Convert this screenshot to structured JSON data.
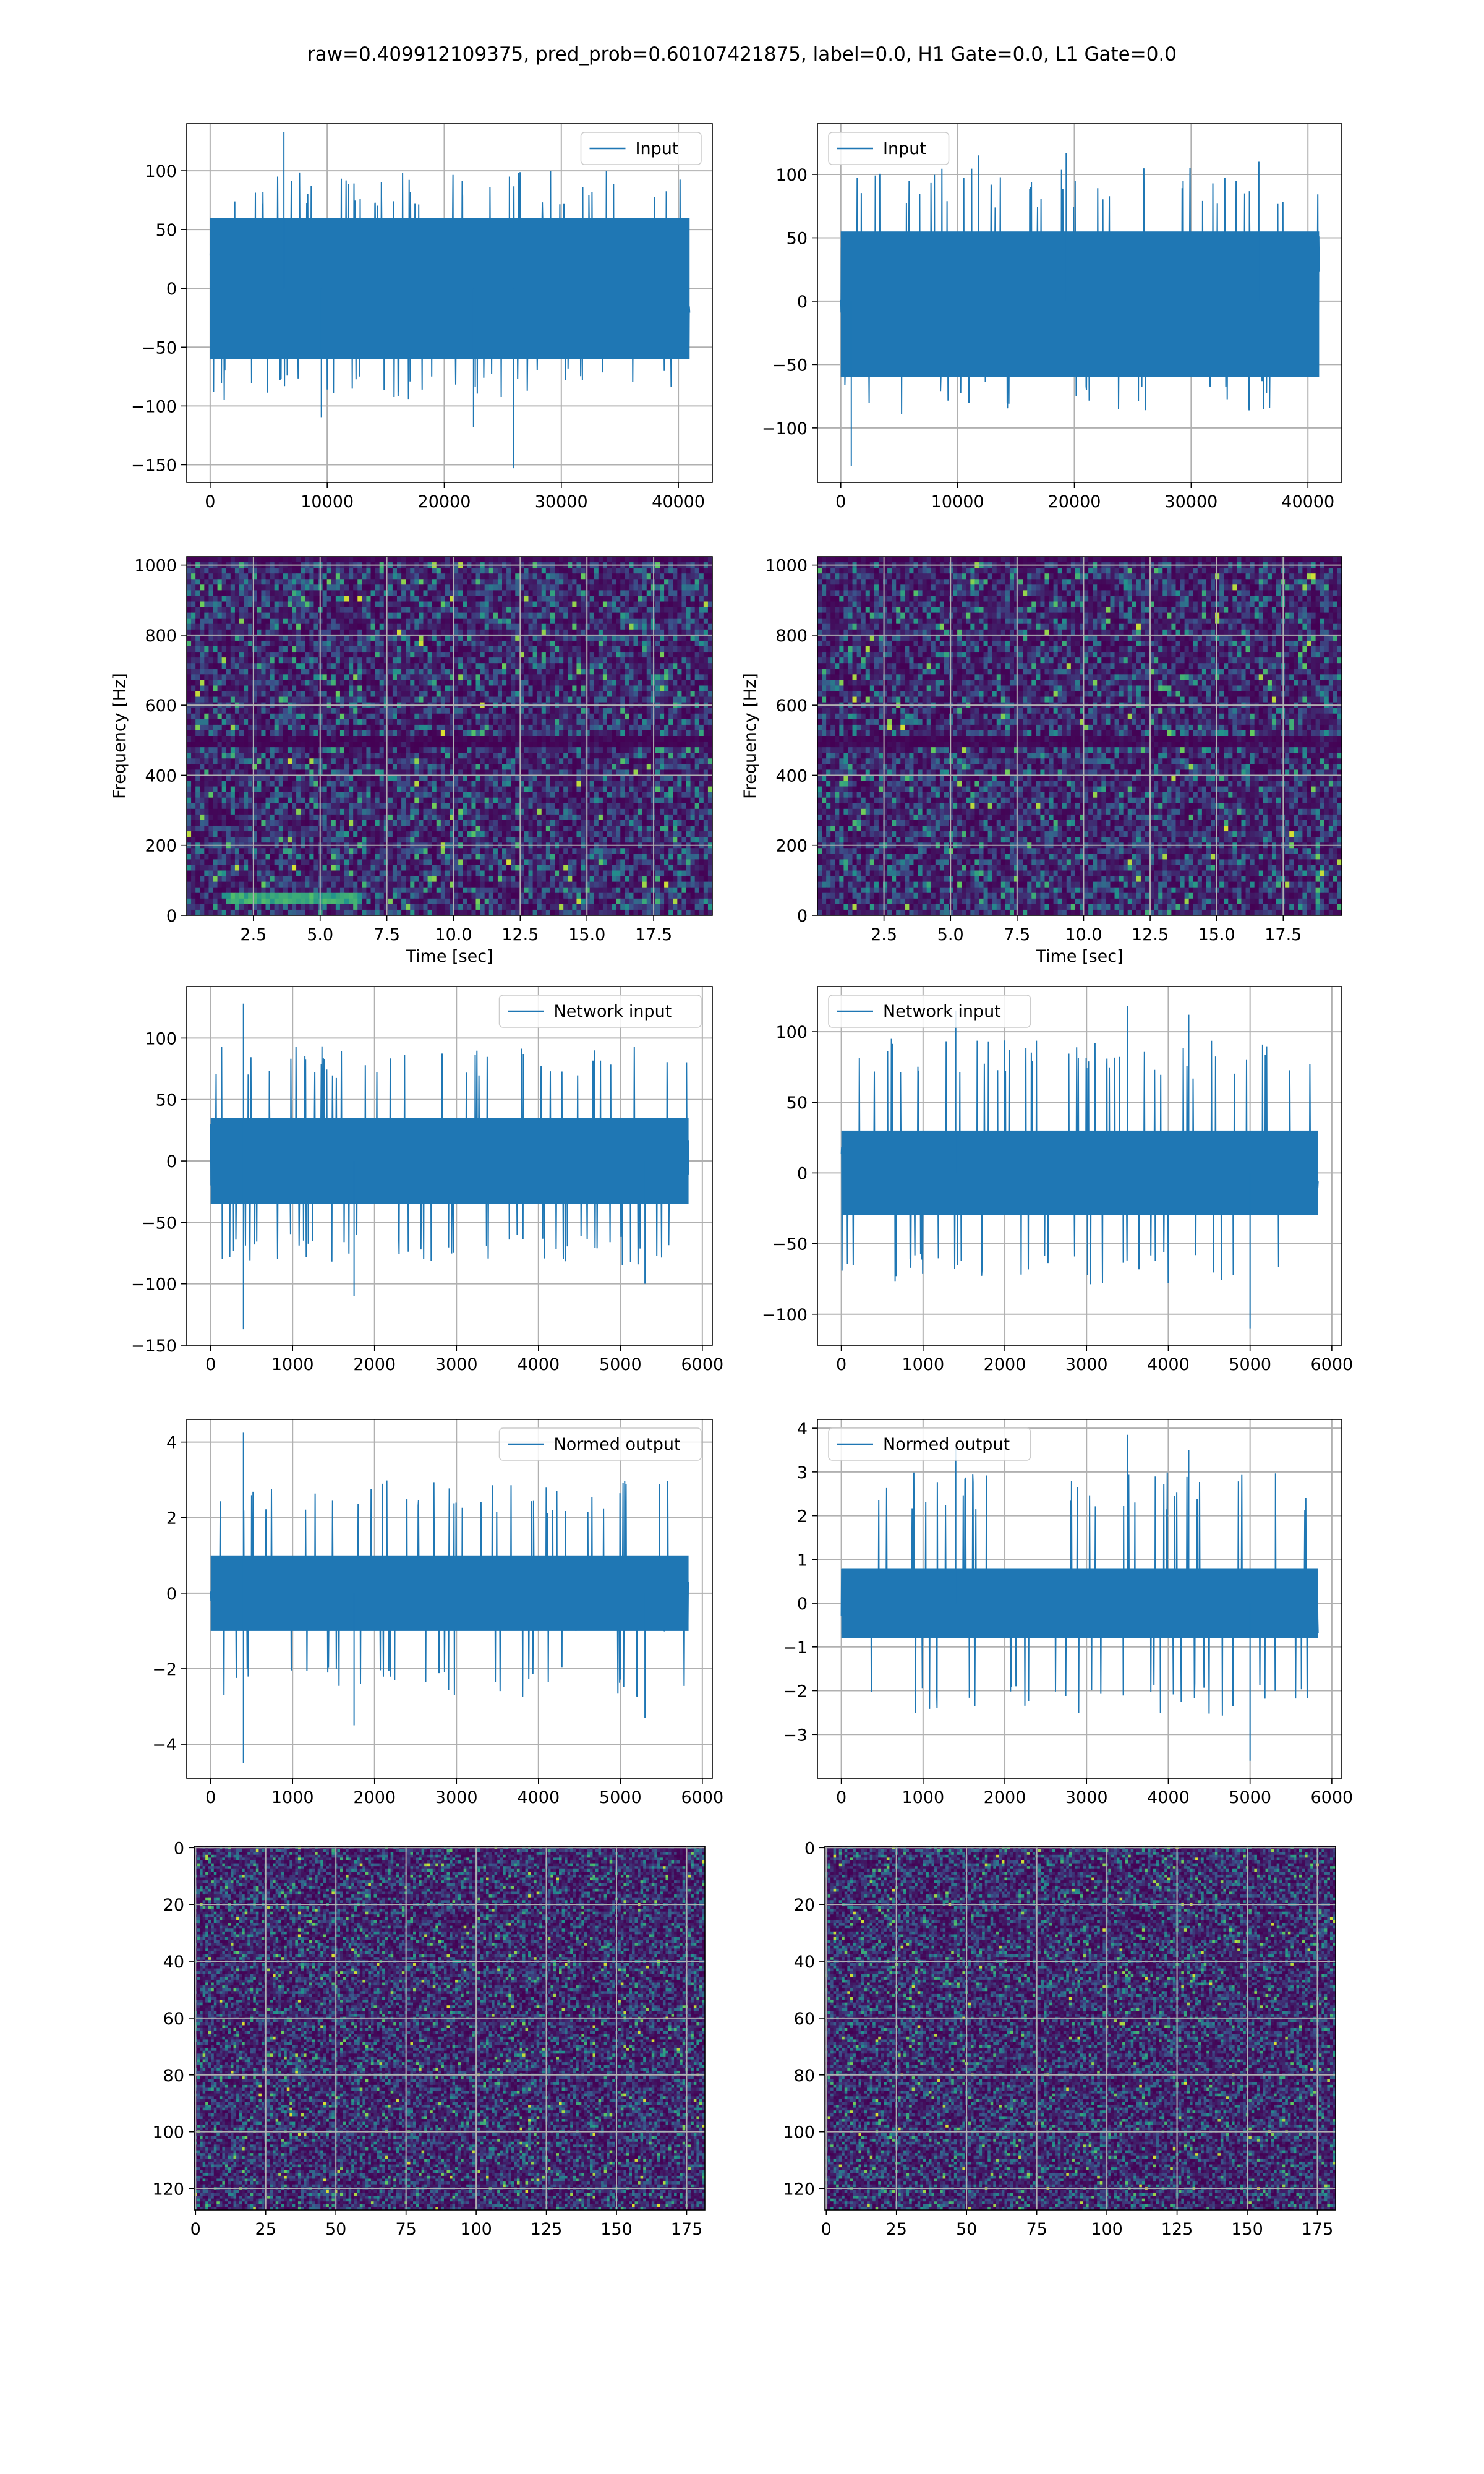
{
  "figure": {
    "suptitle": "raw=0.409912109375, pred_prob=0.60107421875, label=0.0, H1 Gate=0.0, L1 Gate=0.0"
  },
  "colors": {
    "series": "#1f77b4",
    "grid": "#b0b0b0",
    "viridis_low": "#440154",
    "viridis_high": "#fde725"
  },
  "chart_data": [
    {
      "id": "p1",
      "type": "line",
      "legend": "Input",
      "legend_loc": "upper right",
      "xlim": [
        -2000,
        42900
      ],
      "ylim": [
        -165,
        140
      ],
      "xticks": [
        0,
        10000,
        20000,
        30000,
        40000
      ],
      "yticks": [
        -150,
        -100,
        -50,
        0,
        50,
        100
      ],
      "x_range": [
        0,
        40960
      ],
      "band": [
        -60,
        60
      ],
      "envelope": [
        -95,
        100
      ],
      "spikes": [
        {
          "x": 6300,
          "y": 133
        },
        {
          "x": 25900,
          "y": -153
        },
        {
          "x": 22500,
          "y": -118
        },
        {
          "x": 9500,
          "y": -110
        }
      ],
      "grid": true
    },
    {
      "id": "p2",
      "type": "line",
      "legend": "Input",
      "legend_loc": "upper left",
      "xlim": [
        -2000,
        42900
      ],
      "ylim": [
        -143,
        140
      ],
      "xticks": [
        0,
        10000,
        20000,
        30000,
        40000
      ],
      "yticks": [
        -100,
        -50,
        0,
        50,
        100
      ],
      "x_range": [
        0,
        40960
      ],
      "band": [
        -60,
        55
      ],
      "envelope": [
        -90,
        105
      ],
      "spikes": [
        {
          "x": 900,
          "y": -130
        },
        {
          "x": 11800,
          "y": 115
        },
        {
          "x": 19300,
          "y": 117
        },
        {
          "x": 35800,
          "y": 110
        }
      ],
      "grid": true
    },
    {
      "id": "p3",
      "type": "heatmap",
      "kind": "spectrogram",
      "xlabel": "Time [sec]",
      "ylabel": "Frequency [Hz]",
      "xlim": [
        0,
        19.7
      ],
      "ylim": [
        0,
        1024
      ],
      "xticks": [
        2.5,
        5.0,
        7.5,
        10.0,
        12.5,
        15.0,
        17.5
      ],
      "xtick_labels": [
        "2.5",
        "5.0",
        "7.5",
        "10.0",
        "12.5",
        "15.0",
        "17.5"
      ],
      "yticks": [
        0,
        200,
        400,
        600,
        800,
        1000
      ],
      "cols": 120,
      "rows": 64,
      "seed": 11,
      "dark_band_hz": 500,
      "bright_low_band": true,
      "grid": true
    },
    {
      "id": "p4",
      "type": "heatmap",
      "kind": "spectrogram",
      "xlabel": "Time [sec]",
      "ylabel": "Frequency [Hz]",
      "xlim": [
        0,
        19.7
      ],
      "ylim": [
        0,
        1024
      ],
      "xticks": [
        2.5,
        5.0,
        7.5,
        10.0,
        12.5,
        15.0,
        17.5
      ],
      "xtick_labels": [
        "2.5",
        "5.0",
        "7.5",
        "10.0",
        "12.5",
        "15.0",
        "17.5"
      ],
      "yticks": [
        0,
        200,
        400,
        600,
        800,
        1000
      ],
      "cols": 120,
      "rows": 64,
      "seed": 23,
      "dark_band_hz": 500,
      "bright_low_band": false,
      "grid": true
    },
    {
      "id": "p5",
      "type": "line",
      "legend": "Network input",
      "legend_loc": "upper right",
      "xlim": [
        -292,
        6122
      ],
      "ylim": [
        -150,
        142
      ],
      "xticks": [
        0,
        1000,
        2000,
        3000,
        4000,
        5000,
        6000
      ],
      "yticks": [
        -150,
        -100,
        -50,
        0,
        50,
        100
      ],
      "x_range": [
        0,
        5832
      ],
      "band": [
        -35,
        35
      ],
      "envelope": [
        -85,
        95
      ],
      "spikes": [
        {
          "x": 400,
          "y": 128
        },
        {
          "x": 400,
          "y": -137
        },
        {
          "x": 1750,
          "y": -110
        },
        {
          "x": 5300,
          "y": -100
        }
      ],
      "grid": true
    },
    {
      "id": "p6",
      "type": "line",
      "legend": "Network input",
      "legend_loc": "upper left",
      "xlim": [
        -292,
        6122
      ],
      "ylim": [
        -122,
        132
      ],
      "xticks": [
        0,
        1000,
        2000,
        3000,
        4000,
        5000,
        6000
      ],
      "yticks": [
        -100,
        -50,
        0,
        50,
        100
      ],
      "x_range": [
        0,
        5832
      ],
      "band": [
        -30,
        30
      ],
      "envelope": [
        -80,
        95
      ],
      "spikes": [
        {
          "x": 3500,
          "y": 118
        },
        {
          "x": 5000,
          "y": -110
        },
        {
          "x": 1400,
          "y": 115
        },
        {
          "x": 4250,
          "y": 112
        }
      ],
      "grid": true
    },
    {
      "id": "p7",
      "type": "line",
      "legend": "Normed output",
      "legend_loc": "upper right",
      "xlim": [
        -292,
        6122
      ],
      "ylim": [
        -4.9,
        4.6
      ],
      "xticks": [
        0,
        1000,
        2000,
        3000,
        4000,
        5000,
        6000
      ],
      "yticks": [
        -4,
        -2,
        0,
        2,
        4
      ],
      "x_range": [
        0,
        5832
      ],
      "band": [
        -1.0,
        1.0
      ],
      "envelope": [
        -2.8,
        3.0
      ],
      "spikes": [
        {
          "x": 400,
          "y": 4.25
        },
        {
          "x": 400,
          "y": -4.5
        },
        {
          "x": 1750,
          "y": -3.5
        },
        {
          "x": 5300,
          "y": -3.3
        }
      ],
      "grid": true
    },
    {
      "id": "p8",
      "type": "line",
      "legend": "Normed output",
      "legend_loc": "upper left",
      "xlim": [
        -292,
        6122
      ],
      "ylim": [
        -4.0,
        4.2
      ],
      "xticks": [
        0,
        1000,
        2000,
        3000,
        4000,
        5000,
        6000
      ],
      "yticks": [
        -3,
        -2,
        -1,
        0,
        1,
        2,
        3,
        4
      ],
      "x_range": [
        0,
        5832
      ],
      "band": [
        -0.8,
        0.8
      ],
      "envelope": [
        -2.6,
        3.0
      ],
      "spikes": [
        {
          "x": 3500,
          "y": 3.85
        },
        {
          "x": 5000,
          "y": -3.6
        },
        {
          "x": 1400,
          "y": 3.6
        },
        {
          "x": 4250,
          "y": 3.5
        }
      ],
      "grid": true
    },
    {
      "id": "p9",
      "type": "heatmap",
      "kind": "image",
      "xlim": [
        -0.5,
        181.5
      ],
      "ylim": [
        127.5,
        -0.5
      ],
      "xticks": [
        0,
        25,
        50,
        75,
        100,
        125,
        150,
        175
      ],
      "yticks": [
        0,
        20,
        40,
        60,
        80,
        100,
        120
      ],
      "cols": 182,
      "rows": 128,
      "seed": 37,
      "grid": true
    },
    {
      "id": "p10",
      "type": "heatmap",
      "kind": "image",
      "xlim": [
        -0.5,
        181.5
      ],
      "ylim": [
        127.5,
        -0.5
      ],
      "xticks": [
        0,
        25,
        50,
        75,
        100,
        125,
        150,
        175
      ],
      "yticks": [
        0,
        20,
        40,
        60,
        80,
        100,
        120
      ],
      "cols": 182,
      "rows": 128,
      "seed": 51,
      "grid": true
    }
  ]
}
